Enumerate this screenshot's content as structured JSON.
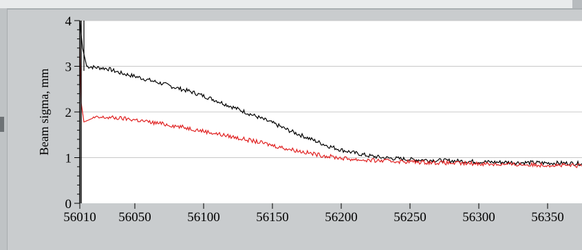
{
  "chart_data": {
    "type": "line",
    "title": "",
    "xlabel": "",
    "ylabel": "Beam sigma, mm",
    "xlim": [
      56010,
      56375
    ],
    "ylim": [
      0,
      4
    ],
    "x_ticks": [
      56010,
      56050,
      56100,
      56150,
      56200,
      56250,
      56300,
      56350
    ],
    "y_ticks": [
      0,
      1,
      2,
      3,
      4
    ],
    "grid": "horizontal",
    "legend": "none",
    "series": [
      {
        "color": "#000000",
        "x": [
          56010,
          56012,
          56015,
          56020,
          56030,
          56040,
          56050,
          56060,
          56070,
          56080,
          56090,
          56100,
          56110,
          56120,
          56130,
          56140,
          56150,
          56160,
          56170,
          56180,
          56190,
          56200,
          56210,
          56220,
          56230,
          56240,
          56250,
          56260,
          56270,
          56280,
          56290,
          56300,
          56310,
          56320,
          56330,
          56340,
          56350,
          56360,
          56375
        ],
        "y": [
          4.0,
          3.4,
          3.0,
          2.98,
          2.95,
          2.85,
          2.78,
          2.7,
          2.62,
          2.53,
          2.45,
          2.35,
          2.24,
          2.12,
          2.0,
          1.88,
          1.76,
          1.62,
          1.5,
          1.38,
          1.26,
          1.17,
          1.1,
          1.04,
          1.0,
          0.98,
          0.96,
          0.95,
          0.94,
          0.93,
          0.92,
          0.91,
          0.9,
          0.9,
          0.89,
          0.89,
          0.88,
          0.88,
          0.87
        ]
      },
      {
        "color": "#e02020",
        "x": [
          56010,
          56011,
          56013,
          56020,
          56030,
          56040,
          56050,
          56060,
          56070,
          56080,
          56090,
          56100,
          56110,
          56120,
          56130,
          56140,
          56150,
          56160,
          56170,
          56180,
          56190,
          56200,
          56210,
          56220,
          56230,
          56240,
          56250,
          56260,
          56270,
          56280,
          56290,
          56300,
          56310,
          56320,
          56330,
          56340,
          56350,
          56360,
          56375
        ],
        "y": [
          3.4,
          2.2,
          1.78,
          1.87,
          1.88,
          1.86,
          1.83,
          1.78,
          1.74,
          1.69,
          1.64,
          1.58,
          1.52,
          1.46,
          1.4,
          1.34,
          1.27,
          1.2,
          1.14,
          1.08,
          1.03,
          0.99,
          0.96,
          0.94,
          0.93,
          0.92,
          0.91,
          0.9,
          0.89,
          0.88,
          0.87,
          0.87,
          0.86,
          0.85,
          0.85,
          0.84,
          0.84,
          0.83,
          0.82
        ]
      }
    ]
  }
}
